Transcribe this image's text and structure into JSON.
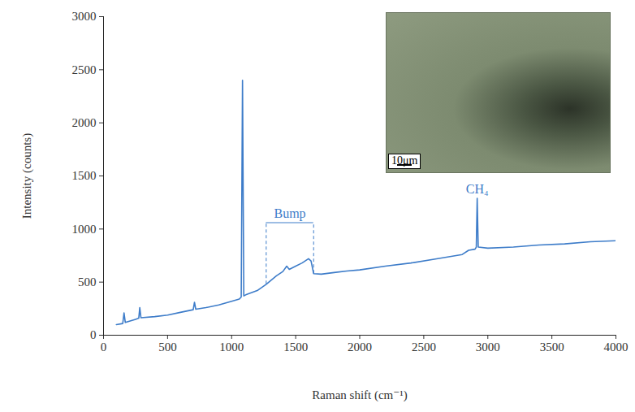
{
  "chart_data": {
    "type": "line",
    "x_label": "Raman shift (cm⁻¹)",
    "y_label": "Intensity (counts)",
    "xlim": [
      0,
      4000
    ],
    "xticks": [
      0,
      500,
      1000,
      1500,
      2000,
      2500,
      3000,
      3500,
      4000
    ],
    "ylim": [
      0,
      3000
    ],
    "yticks": [
      0,
      500,
      1000,
      1500,
      2000,
      2500,
      3000
    ],
    "grid": false,
    "color": "#3d7cc9",
    "x": [
      100,
      150,
      160,
      170,
      250,
      275,
      283,
      292,
      400,
      500,
      600,
      700,
      710,
      720,
      800,
      900,
      1000,
      1060,
      1075,
      1085,
      1095,
      1110,
      1200,
      1270,
      1350,
      1400,
      1430,
      1450,
      1500,
      1550,
      1600,
      1620,
      1640,
      1700,
      1800,
      1900,
      2000,
      2200,
      2400,
      2600,
      2800,
      2850,
      2900,
      2910,
      2917,
      2925,
      3000,
      3200,
      3400,
      3600,
      3800,
      4000
    ],
    "values": [
      100,
      110,
      210,
      120,
      150,
      160,
      260,
      165,
      175,
      190,
      215,
      240,
      310,
      245,
      260,
      285,
      320,
      340,
      360,
      2400,
      370,
      380,
      420,
      480,
      560,
      600,
      650,
      620,
      650,
      680,
      720,
      700,
      580,
      575,
      590,
      605,
      615,
      650,
      680,
      720,
      760,
      800,
      810,
      830,
      1290,
      830,
      820,
      830,
      850,
      860,
      880,
      890
    ],
    "annotations": [
      {
        "text": "Bump",
        "x_range": [
          1270,
          1640
        ],
        "y": 1060
      },
      {
        "text": "CH₄",
        "x": 2917,
        "y": 1330
      }
    ],
    "inset": {
      "scale_bar": "10μm"
    }
  }
}
